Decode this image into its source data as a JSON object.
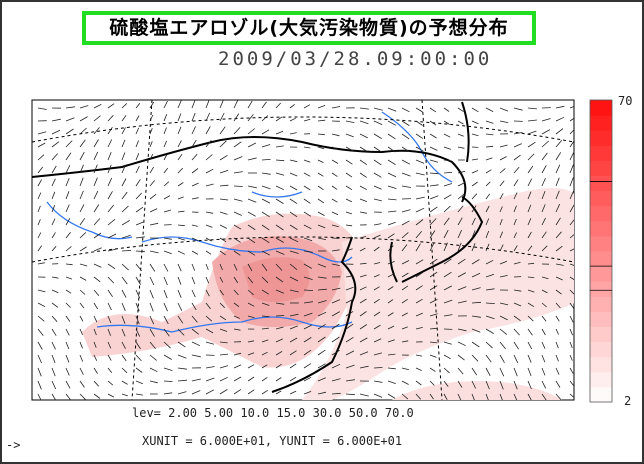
{
  "header": {
    "title": "硫酸塩エアロゾル(大気汚染物質)の予想分布",
    "datetime": "2009/03/28.09:00:00"
  },
  "colorbar": {
    "top_label": "70",
    "bottom_label": "2"
  },
  "footer": {
    "levels": "lev= 2.00 5.00 10.0 15.0 30.0 50.0 70.0",
    "arrow": "->",
    "units": "XUNIT = 6.000E+01, YUNIT = 6.000E+01"
  }
}
